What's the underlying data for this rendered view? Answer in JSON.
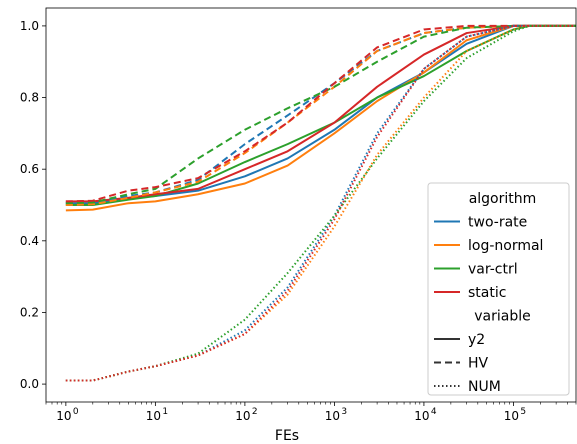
{
  "chart_data": {
    "type": "line",
    "xlabel": "FEs",
    "ylabel": "",
    "x_scale": "log",
    "xlim": [
      0.6,
      500000
    ],
    "ylim": [
      -0.05,
      1.05
    ],
    "grid": false,
    "legend_position": "lower-right",
    "x_ticks": [
      {
        "value": 1,
        "base": "10",
        "exp": "0"
      },
      {
        "value": 10,
        "base": "10",
        "exp": "1"
      },
      {
        "value": 100,
        "base": "10",
        "exp": "2"
      },
      {
        "value": 1000,
        "base": "10",
        "exp": "3"
      },
      {
        "value": 10000,
        "base": "10",
        "exp": "4"
      },
      {
        "value": 100000,
        "base": "10",
        "exp": "5"
      }
    ],
    "y_ticks": [
      "0.0",
      "0.2",
      "0.4",
      "0.6",
      "0.8",
      "1.0"
    ],
    "colors": {
      "two-rate": "#1f77b4",
      "log-normal": "#ff7f0e",
      "var-ctrl": "#2ca02c",
      "static": "#d62728"
    },
    "legend": {
      "hue_title": "algorithm",
      "algorithms": [
        "two-rate",
        "log-normal",
        "var-ctrl",
        "static"
      ],
      "style_title": "variable",
      "variables": [
        {
          "name": "y2",
          "dash": "solid"
        },
        {
          "name": "HV",
          "dash": "dashed"
        },
        {
          "name": "NUM",
          "dash": "dotted"
        }
      ]
    },
    "series": [
      {
        "algorithm": "two-rate",
        "variable": "y2",
        "points": [
          [
            1,
            0.505
          ],
          [
            2,
            0.505
          ],
          [
            5,
            0.52
          ],
          [
            10,
            0.525
          ],
          [
            30,
            0.54
          ],
          [
            100,
            0.58
          ],
          [
            300,
            0.63
          ],
          [
            1000,
            0.71
          ],
          [
            3000,
            0.8
          ],
          [
            10000,
            0.87
          ],
          [
            30000,
            0.95
          ],
          [
            100000,
            1.0
          ],
          [
            500000,
            1.0
          ]
        ]
      },
      {
        "algorithm": "log-normal",
        "variable": "y2",
        "points": [
          [
            1,
            0.485
          ],
          [
            2,
            0.487
          ],
          [
            5,
            0.505
          ],
          [
            10,
            0.51
          ],
          [
            30,
            0.53
          ],
          [
            100,
            0.56
          ],
          [
            300,
            0.61
          ],
          [
            1000,
            0.7
          ],
          [
            3000,
            0.79
          ],
          [
            10000,
            0.87
          ],
          [
            30000,
            0.96
          ],
          [
            100000,
            1.0
          ],
          [
            500000,
            1.0
          ]
        ]
      },
      {
        "algorithm": "var-ctrl",
        "variable": "y2",
        "points": [
          [
            1,
            0.5
          ],
          [
            2,
            0.5
          ],
          [
            5,
            0.515
          ],
          [
            10,
            0.525
          ],
          [
            30,
            0.56
          ],
          [
            100,
            0.62
          ],
          [
            300,
            0.67
          ],
          [
            1000,
            0.73
          ],
          [
            3000,
            0.8
          ],
          [
            10000,
            0.86
          ],
          [
            30000,
            0.93
          ],
          [
            100000,
            0.99
          ],
          [
            150000,
            1.0
          ],
          [
            500000,
            1.0
          ]
        ]
      },
      {
        "algorithm": "static",
        "variable": "y2",
        "points": [
          [
            1,
            0.51
          ],
          [
            2,
            0.51
          ],
          [
            5,
            0.52
          ],
          [
            10,
            0.53
          ],
          [
            30,
            0.545
          ],
          [
            100,
            0.6
          ],
          [
            300,
            0.65
          ],
          [
            1000,
            0.73
          ],
          [
            3000,
            0.83
          ],
          [
            10000,
            0.92
          ],
          [
            30000,
            0.98
          ],
          [
            100000,
            1.0
          ],
          [
            500000,
            1.0
          ]
        ]
      },
      {
        "algorithm": "two-rate",
        "variable": "HV",
        "points": [
          [
            1,
            0.505
          ],
          [
            2,
            0.507
          ],
          [
            5,
            0.525
          ],
          [
            10,
            0.535
          ],
          [
            30,
            0.57
          ],
          [
            100,
            0.67
          ],
          [
            300,
            0.75
          ],
          [
            1000,
            0.84
          ],
          [
            3000,
            0.93
          ],
          [
            10000,
            0.98
          ],
          [
            30000,
            0.995
          ],
          [
            100000,
            1.0
          ],
          [
            500000,
            1.0
          ]
        ]
      },
      {
        "algorithm": "log-normal",
        "variable": "HV",
        "points": [
          [
            1,
            0.5
          ],
          [
            2,
            0.502
          ],
          [
            5,
            0.52
          ],
          [
            10,
            0.535
          ],
          [
            30,
            0.565
          ],
          [
            100,
            0.645
          ],
          [
            300,
            0.73
          ],
          [
            1000,
            0.83
          ],
          [
            3000,
            0.93
          ],
          [
            10000,
            0.98
          ],
          [
            30000,
            0.995
          ],
          [
            100000,
            1.0
          ],
          [
            500000,
            1.0
          ]
        ]
      },
      {
        "algorithm": "var-ctrl",
        "variable": "HV",
        "points": [
          [
            1,
            0.505
          ],
          [
            2,
            0.507
          ],
          [
            5,
            0.53
          ],
          [
            10,
            0.545
          ],
          [
            30,
            0.63
          ],
          [
            100,
            0.71
          ],
          [
            300,
            0.77
          ],
          [
            1000,
            0.83
          ],
          [
            3000,
            0.9
          ],
          [
            10000,
            0.97
          ],
          [
            30000,
            0.995
          ],
          [
            100000,
            1.0
          ],
          [
            500000,
            1.0
          ]
        ]
      },
      {
        "algorithm": "static",
        "variable": "HV",
        "points": [
          [
            1,
            0.51
          ],
          [
            2,
            0.512
          ],
          [
            5,
            0.54
          ],
          [
            10,
            0.55
          ],
          [
            30,
            0.575
          ],
          [
            100,
            0.65
          ],
          [
            300,
            0.73
          ],
          [
            1000,
            0.84
          ],
          [
            3000,
            0.94
          ],
          [
            10000,
            0.99
          ],
          [
            30000,
            1.0
          ],
          [
            100000,
            1.0
          ],
          [
            500000,
            1.0
          ]
        ]
      },
      {
        "algorithm": "two-rate",
        "variable": "NUM",
        "points": [
          [
            1,
            0.01
          ],
          [
            2,
            0.01
          ],
          [
            5,
            0.035
          ],
          [
            10,
            0.05
          ],
          [
            30,
            0.08
          ],
          [
            100,
            0.15
          ],
          [
            300,
            0.27
          ],
          [
            1000,
            0.47
          ],
          [
            3000,
            0.7
          ],
          [
            10000,
            0.88
          ],
          [
            30000,
            0.97
          ],
          [
            100000,
            1.0
          ],
          [
            500000,
            1.0
          ]
        ]
      },
      {
        "algorithm": "log-normal",
        "variable": "NUM",
        "points": [
          [
            1,
            0.01
          ],
          [
            2,
            0.01
          ],
          [
            5,
            0.035
          ],
          [
            10,
            0.05
          ],
          [
            30,
            0.08
          ],
          [
            100,
            0.14
          ],
          [
            300,
            0.25
          ],
          [
            1000,
            0.44
          ],
          [
            3000,
            0.64
          ],
          [
            10000,
            0.8
          ],
          [
            30000,
            0.93
          ],
          [
            100000,
            0.99
          ],
          [
            150000,
            1.0
          ],
          [
            500000,
            1.0
          ]
        ]
      },
      {
        "algorithm": "var-ctrl",
        "variable": "NUM",
        "points": [
          [
            1,
            0.01
          ],
          [
            2,
            0.01
          ],
          [
            5,
            0.035
          ],
          [
            10,
            0.05
          ],
          [
            30,
            0.085
          ],
          [
            100,
            0.18
          ],
          [
            300,
            0.31
          ],
          [
            1000,
            0.47
          ],
          [
            3000,
            0.63
          ],
          [
            10000,
            0.79
          ],
          [
            30000,
            0.91
          ],
          [
            100000,
            0.985
          ],
          [
            150000,
            1.0
          ],
          [
            500000,
            1.0
          ]
        ]
      },
      {
        "algorithm": "static",
        "variable": "NUM",
        "points": [
          [
            1,
            0.01
          ],
          [
            2,
            0.01
          ],
          [
            5,
            0.035
          ],
          [
            10,
            0.05
          ],
          [
            30,
            0.08
          ],
          [
            100,
            0.14
          ],
          [
            300,
            0.26
          ],
          [
            1000,
            0.46
          ],
          [
            3000,
            0.69
          ],
          [
            10000,
            0.88
          ],
          [
            30000,
            0.97
          ],
          [
            100000,
            1.0
          ],
          [
            500000,
            1.0
          ]
        ]
      }
    ]
  }
}
